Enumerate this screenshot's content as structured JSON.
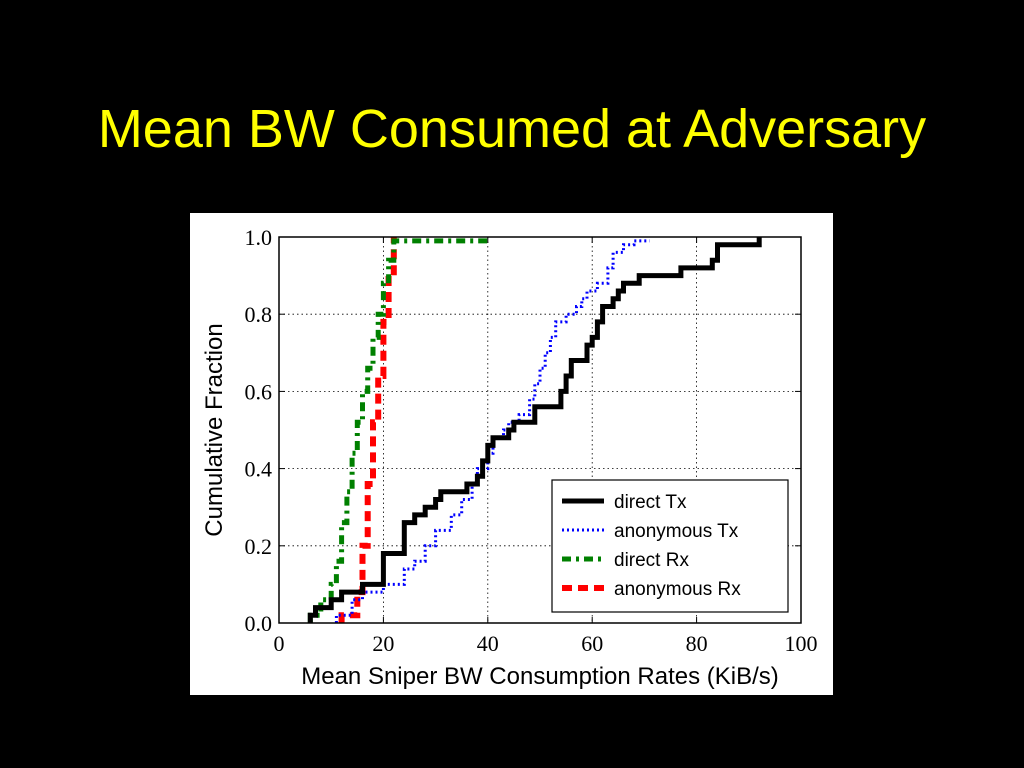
{
  "slide": {
    "title": "Mean BW Consumed at Adversary"
  },
  "chart_data": {
    "type": "line",
    "title": "",
    "xlabel": "Mean Sniper BW Consumption Rates (KiB/s)",
    "ylabel": "Cumulative Fraction",
    "xlim": [
      0,
      100
    ],
    "ylim": [
      0,
      1
    ],
    "x_ticks": [
      "0",
      "20",
      "40",
      "60",
      "80",
      "100"
    ],
    "y_ticks": [
      "0.0",
      "0.2",
      "0.4",
      "0.6",
      "0.8",
      "1.0"
    ],
    "grid": true,
    "legend_position": "lower-right",
    "series": [
      {
        "name": "direct Tx",
        "color": "#000000",
        "style": "solid",
        "points": [
          [
            6,
            0
          ],
          [
            6,
            0.02
          ],
          [
            7,
            0.02
          ],
          [
            7,
            0.04
          ],
          [
            10,
            0.04
          ],
          [
            10,
            0.06
          ],
          [
            12,
            0.06
          ],
          [
            12,
            0.08
          ],
          [
            16,
            0.08
          ],
          [
            16,
            0.1
          ],
          [
            20,
            0.1
          ],
          [
            20,
            0.18
          ],
          [
            24,
            0.18
          ],
          [
            24,
            0.26
          ],
          [
            26,
            0.26
          ],
          [
            26,
            0.28
          ],
          [
            28,
            0.28
          ],
          [
            28,
            0.3
          ],
          [
            30,
            0.3
          ],
          [
            30,
            0.32
          ],
          [
            31,
            0.32
          ],
          [
            31,
            0.34
          ],
          [
            36,
            0.34
          ],
          [
            36,
            0.36
          ],
          [
            38,
            0.36
          ],
          [
            38,
            0.38
          ],
          [
            39,
            0.38
          ],
          [
            39,
            0.42
          ],
          [
            40,
            0.42
          ],
          [
            40,
            0.46
          ],
          [
            41,
            0.46
          ],
          [
            41,
            0.48
          ],
          [
            44,
            0.48
          ],
          [
            44,
            0.5
          ],
          [
            45,
            0.5
          ],
          [
            45,
            0.52
          ],
          [
            49,
            0.52
          ],
          [
            49,
            0.56
          ],
          [
            54,
            0.56
          ],
          [
            54,
            0.6
          ],
          [
            55,
            0.6
          ],
          [
            55,
            0.64
          ],
          [
            56,
            0.64
          ],
          [
            56,
            0.68
          ],
          [
            59,
            0.68
          ],
          [
            59,
            0.72
          ],
          [
            60,
            0.72
          ],
          [
            60,
            0.74
          ],
          [
            61,
            0.74
          ],
          [
            61,
            0.78
          ],
          [
            62,
            0.78
          ],
          [
            62,
            0.82
          ],
          [
            64,
            0.82
          ],
          [
            64,
            0.84
          ],
          [
            65,
            0.84
          ],
          [
            65,
            0.86
          ],
          [
            66,
            0.86
          ],
          [
            66,
            0.88
          ],
          [
            69,
            0.88
          ],
          [
            69,
            0.9
          ],
          [
            77,
            0.9
          ],
          [
            77,
            0.92
          ],
          [
            83,
            0.92
          ],
          [
            83,
            0.94
          ],
          [
            84,
            0.94
          ],
          [
            84,
            0.98
          ],
          [
            92,
            0.98
          ],
          [
            92,
            1.0
          ]
        ]
      },
      {
        "name": "anonymous Tx",
        "color": "#0000ff",
        "style": "dotted",
        "points": [
          [
            11,
            0
          ],
          [
            11,
            0.02
          ],
          [
            14,
            0.02
          ],
          [
            14,
            0.06
          ],
          [
            16,
            0.06
          ],
          [
            16,
            0.08
          ],
          [
            20,
            0.08
          ],
          [
            20,
            0.1
          ],
          [
            24,
            0.1
          ],
          [
            24,
            0.14
          ],
          [
            26,
            0.14
          ],
          [
            26,
            0.16
          ],
          [
            28,
            0.16
          ],
          [
            28,
            0.2
          ],
          [
            30,
            0.2
          ],
          [
            30,
            0.24
          ],
          [
            33,
            0.24
          ],
          [
            33,
            0.28
          ],
          [
            35,
            0.28
          ],
          [
            35,
            0.32
          ],
          [
            37,
            0.32
          ],
          [
            37,
            0.36
          ],
          [
            38,
            0.36
          ],
          [
            38,
            0.4
          ],
          [
            40,
            0.4
          ],
          [
            40,
            0.44
          ],
          [
            41,
            0.44
          ],
          [
            41,
            0.48
          ],
          [
            43,
            0.48
          ],
          [
            43,
            0.5
          ],
          [
            44,
            0.5
          ],
          [
            44,
            0.52
          ],
          [
            46,
            0.52
          ],
          [
            46,
            0.54
          ],
          [
            48,
            0.54
          ],
          [
            48,
            0.58
          ],
          [
            49,
            0.58
          ],
          [
            49,
            0.62
          ],
          [
            50,
            0.62
          ],
          [
            50,
            0.66
          ],
          [
            51,
            0.66
          ],
          [
            51,
            0.7
          ],
          [
            52,
            0.7
          ],
          [
            52,
            0.74
          ],
          [
            53,
            0.74
          ],
          [
            53,
            0.78
          ],
          [
            55,
            0.78
          ],
          [
            55,
            0.8
          ],
          [
            57,
            0.8
          ],
          [
            57,
            0.82
          ],
          [
            58,
            0.82
          ],
          [
            58,
            0.84
          ],
          [
            59,
            0.84
          ],
          [
            59,
            0.86
          ],
          [
            61,
            0.86
          ],
          [
            61,
            0.88
          ],
          [
            63,
            0.88
          ],
          [
            63,
            0.92
          ],
          [
            64,
            0.92
          ],
          [
            64,
            0.96
          ],
          [
            66,
            0.96
          ],
          [
            66,
            0.98
          ],
          [
            68,
            0.98
          ],
          [
            68,
            0.99
          ],
          [
            71,
            0.99
          ]
        ]
      },
      {
        "name": "direct Rx",
        "color": "#008000",
        "style": "dashdot",
        "points": [
          [
            6,
            0
          ],
          [
            6,
            0.02
          ],
          [
            8,
            0.02
          ],
          [
            8,
            0.06
          ],
          [
            10,
            0.06
          ],
          [
            10,
            0.1
          ],
          [
            11,
            0.1
          ],
          [
            11,
            0.16
          ],
          [
            12,
            0.16
          ],
          [
            12,
            0.26
          ],
          [
            13,
            0.26
          ],
          [
            13,
            0.34
          ],
          [
            14,
            0.34
          ],
          [
            14,
            0.44
          ],
          [
            15,
            0.44
          ],
          [
            15,
            0.52
          ],
          [
            16,
            0.52
          ],
          [
            16,
            0.6
          ],
          [
            17,
            0.6
          ],
          [
            17,
            0.66
          ],
          [
            18,
            0.66
          ],
          [
            18,
            0.74
          ],
          [
            19,
            0.74
          ],
          [
            19,
            0.8
          ],
          [
            20,
            0.8
          ],
          [
            20,
            0.88
          ],
          [
            21,
            0.88
          ],
          [
            21,
            0.94
          ],
          [
            22,
            0.94
          ],
          [
            22,
            0.99
          ],
          [
            40,
            0.99
          ]
        ]
      },
      {
        "name": "anonymous Rx",
        "color": "#ff0000",
        "style": "dashed",
        "points": [
          [
            12,
            0
          ],
          [
            12,
            0.02
          ],
          [
            15,
            0.02
          ],
          [
            15,
            0.08
          ],
          [
            16,
            0.08
          ],
          [
            16,
            0.2
          ],
          [
            17,
            0.2
          ],
          [
            17,
            0.36
          ],
          [
            18,
            0.36
          ],
          [
            18,
            0.52
          ],
          [
            19,
            0.52
          ],
          [
            19,
            0.64
          ],
          [
            20,
            0.64
          ],
          [
            20,
            0.78
          ],
          [
            21,
            0.78
          ],
          [
            21,
            0.9
          ],
          [
            22,
            0.9
          ],
          [
            22,
            1.0
          ]
        ]
      }
    ]
  }
}
